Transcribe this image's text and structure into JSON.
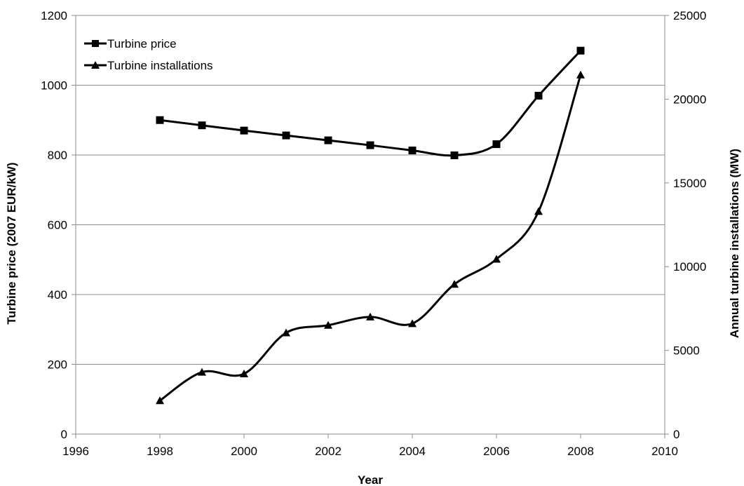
{
  "chart_data": {
    "type": "line",
    "title": "",
    "xlabel": "Year",
    "ylabel": "Turbine price (2007 EUR/kW)",
    "y2label": "Annual turbine installations (MW)",
    "xlim": [
      1996,
      2010
    ],
    "ylim": [
      0,
      1200
    ],
    "y2lim": [
      0,
      25000
    ],
    "x_ticks": [
      1996,
      1998,
      2000,
      2002,
      2004,
      2006,
      2008,
      2010
    ],
    "y_ticks": [
      0,
      200,
      400,
      600,
      800,
      1000,
      1200
    ],
    "y2_ticks": [
      0,
      5000,
      10000,
      15000,
      20000,
      25000
    ],
    "grid": true,
    "legend_position": "top-left",
    "series": [
      {
        "name": "Turbine price",
        "axis": "left",
        "marker": "square",
        "color": "#000000",
        "x": [
          1998,
          1999,
          2000,
          2001,
          2002,
          2003,
          2004,
          2005,
          2006,
          2007,
          2008
        ],
        "values": [
          900,
          885,
          870,
          856,
          842,
          828,
          813,
          799,
          831,
          970,
          1099
        ]
      },
      {
        "name": "Turbine installations",
        "axis": "right",
        "marker": "triangle",
        "color": "#000000",
        "x": [
          1998,
          1999,
          2000,
          2001,
          2002,
          2003,
          2004,
          2005,
          2006,
          2007,
          2008
        ],
        "values": [
          2000,
          3700,
          3600,
          6050,
          6500,
          7000,
          6600,
          8950,
          10450,
          13300,
          21450
        ]
      }
    ]
  }
}
